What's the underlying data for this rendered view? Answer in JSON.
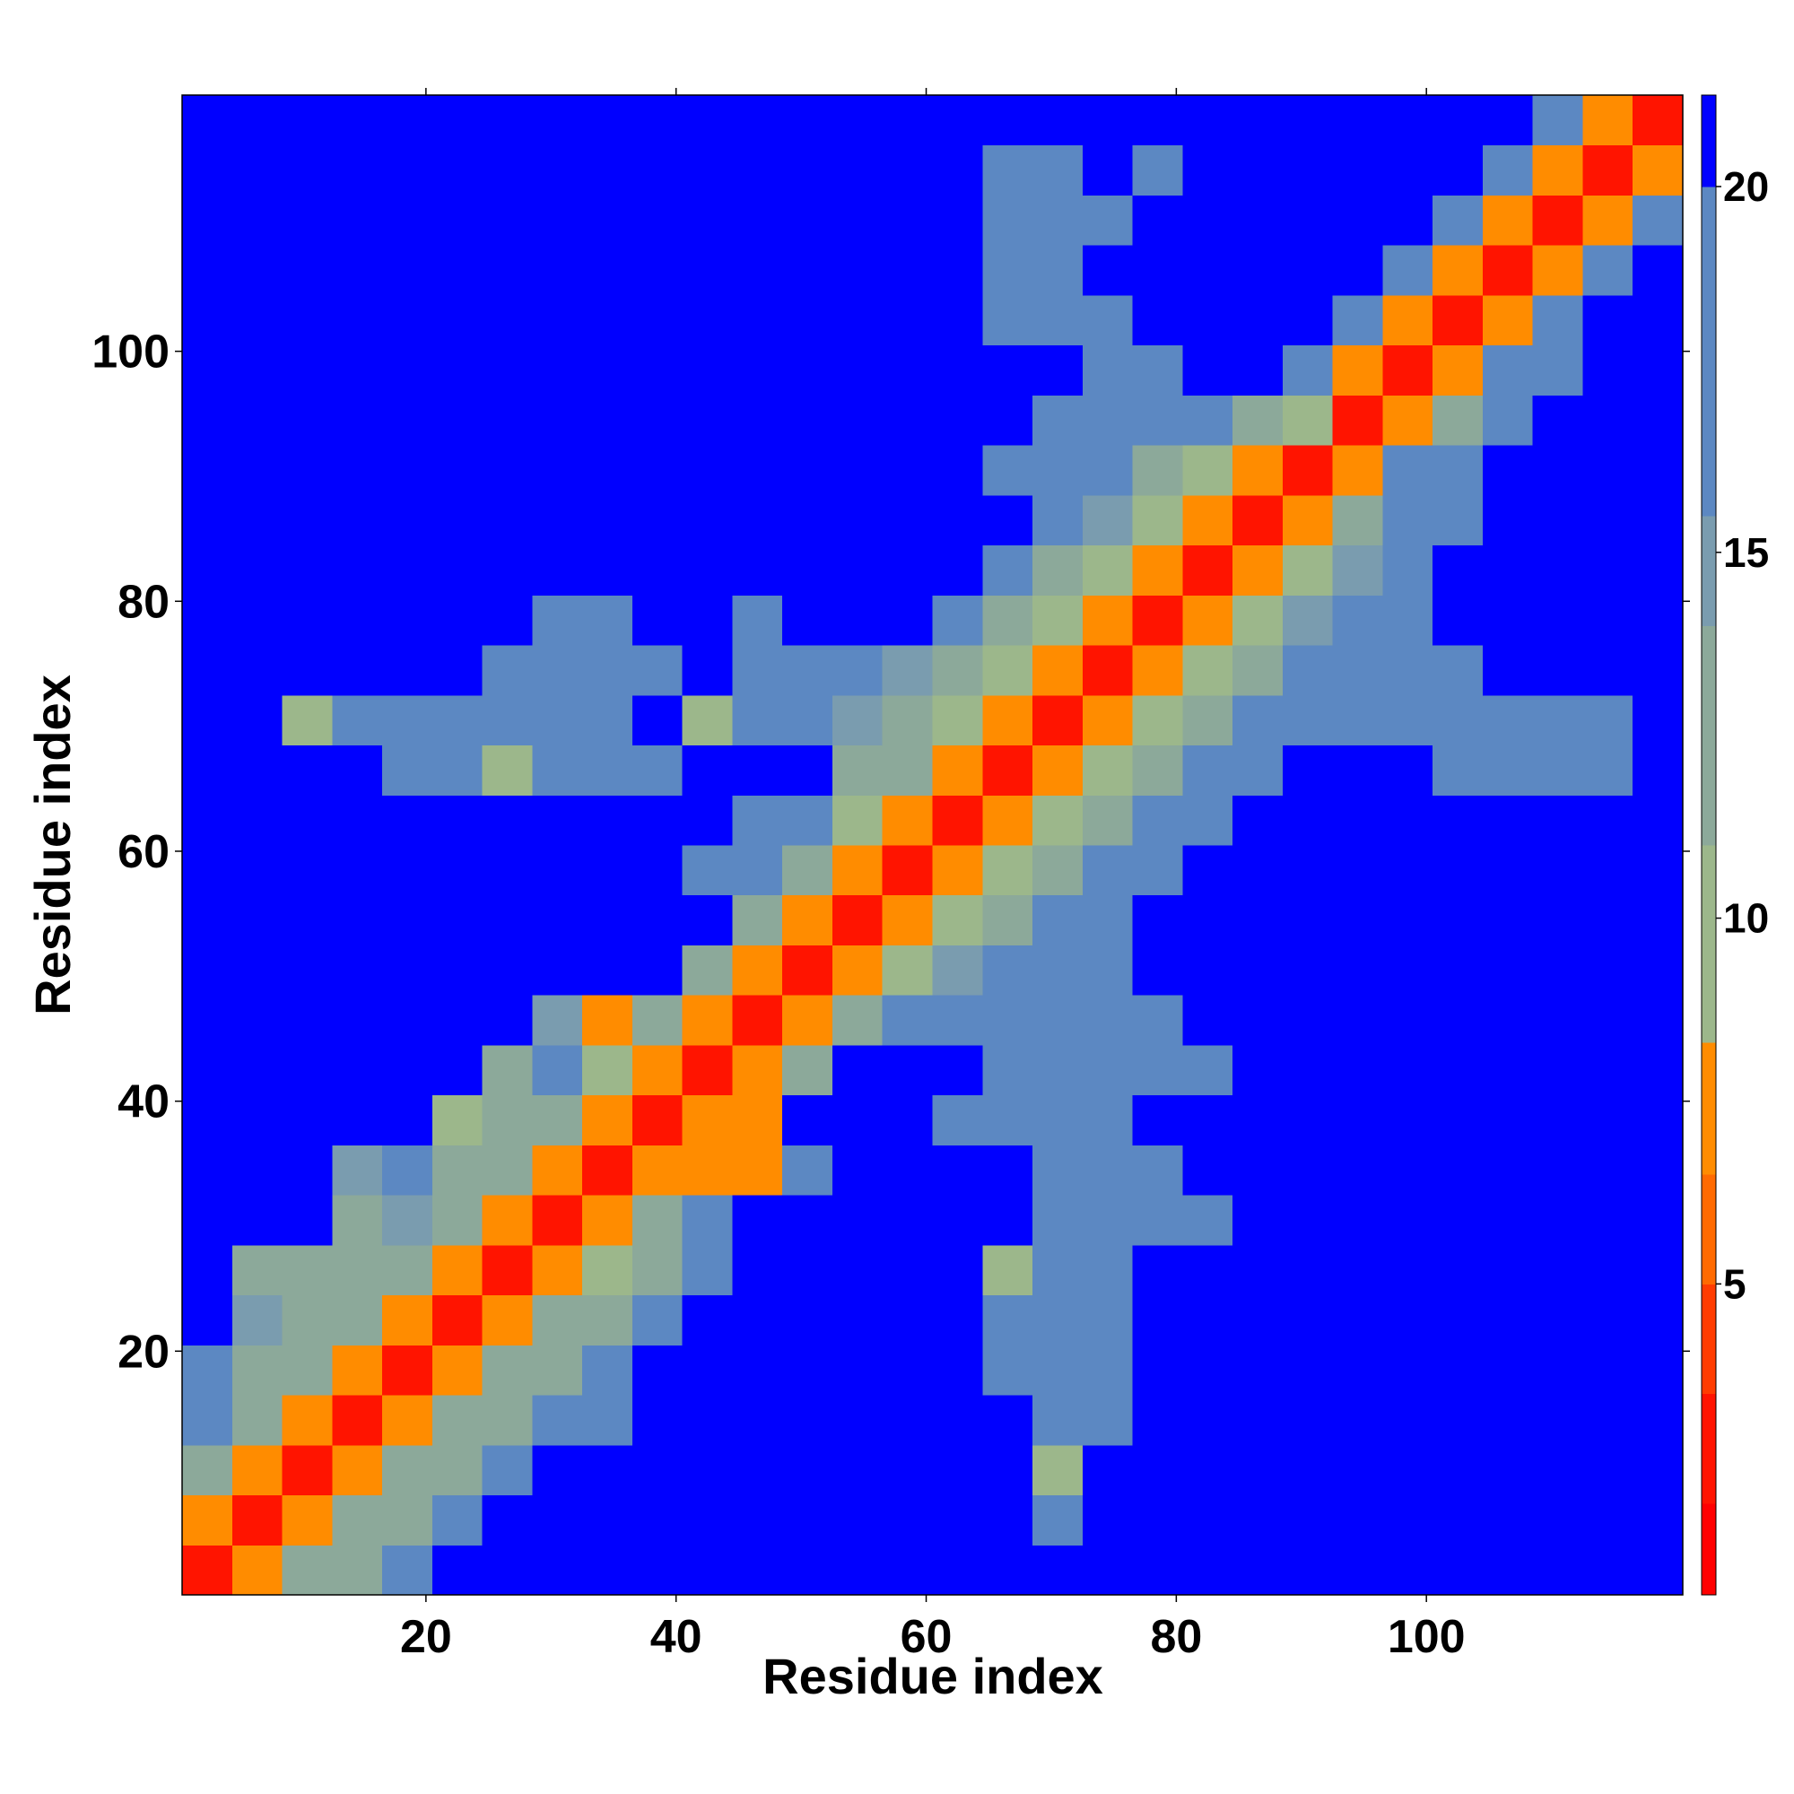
{
  "chart_data": {
    "type": "heatmap",
    "xlabel": "Residue index",
    "ylabel": "Residue index",
    "xlim": [
      0.5,
      120.5
    ],
    "ylim": [
      0.5,
      120.5
    ],
    "xticks": [
      20,
      40,
      60,
      80,
      100
    ],
    "yticks": [
      20,
      40,
      60,
      80,
      100
    ],
    "xbins": [
      0.5,
      4.5,
      8.5,
      12.5,
      16.5,
      20.5,
      24.5,
      28.5,
      32.5,
      36.5,
      40.5,
      44.5,
      48.5,
      52.5,
      56.5,
      60.5,
      64.5,
      68.5,
      72.5,
      76.5,
      80.5,
      84.5,
      88.5,
      92.5,
      96.5,
      100.5,
      104.5,
      108.5,
      112.5,
      116.5,
      120.5
    ],
    "ybins": [
      0.5,
      4.5,
      8.5,
      12.5,
      16.5,
      20.5,
      24.5,
      28.5,
      32.5,
      36.5,
      40.5,
      44.5,
      48.5,
      52.5,
      56.5,
      60.5,
      64.5,
      68.5,
      72.5,
      76.5,
      80.5,
      84.5,
      88.5,
      92.5,
      96.5,
      100.5,
      104.5,
      108.5,
      112.5,
      116.5,
      120.5
    ],
    "clim": [
      0.75,
      21.25
    ],
    "cticks": [
      5,
      10,
      15,
      20
    ],
    "levels": [
      0.75,
      2,
      3.5,
      5,
      6.5,
      8.3,
      11,
      14,
      15.5,
      20,
      21.25
    ],
    "level_colors": [
      "#ff0000",
      "#ff1400",
      "#ff3c00",
      "#ff6a00",
      "#ff8c00",
      "#9cb78b",
      "#8ca99a",
      "#7a9caf",
      "#5c88c2",
      "#0000ff"
    ],
    "z": [
      [
        3,
        8,
        12,
        14,
        17,
        21,
        21,
        21,
        21,
        21,
        21,
        21,
        21,
        21,
        21,
        21,
        21,
        21,
        21,
        21,
        21,
        21,
        21,
        21,
        21,
        21,
        21,
        21,
        21,
        21
      ],
      [
        8,
        3,
        8,
        12,
        13,
        16,
        21,
        21,
        21,
        21,
        21,
        21,
        21,
        21,
        21,
        21,
        21,
        20,
        21,
        21,
        21,
        21,
        21,
        21,
        21,
        21,
        21,
        21,
        21,
        21
      ],
      [
        12,
        8,
        3,
        8,
        12,
        13,
        17,
        21,
        21,
        21,
        21,
        21,
        21,
        21,
        21,
        21,
        21,
        9,
        21,
        21,
        21,
        21,
        21,
        21,
        21,
        21,
        21,
        21,
        21,
        21
      ],
      [
        17,
        12,
        8,
        3,
        8,
        12,
        13,
        16,
        17,
        21,
        21,
        21,
        21,
        21,
        21,
        21,
        21,
        18,
        20,
        21,
        21,
        21,
        21,
        21,
        21,
        21,
        21,
        21,
        21,
        21
      ],
      [
        16,
        12,
        12,
        8,
        3,
        8,
        12,
        14,
        17,
        21,
        21,
        21,
        21,
        21,
        21,
        21,
        18,
        18,
        20,
        21,
        21,
        21,
        21,
        21,
        21,
        21,
        21,
        21,
        21,
        21
      ],
      [
        21,
        15,
        12,
        13,
        8,
        3,
        8,
        12,
        13,
        18,
        21,
        21,
        21,
        21,
        21,
        21,
        18,
        18,
        19,
        21,
        21,
        21,
        21,
        21,
        21,
        21,
        21,
        21,
        21,
        21
      ],
      [
        21,
        14,
        13,
        13,
        12,
        8,
        3,
        8,
        10,
        14,
        20,
        21,
        21,
        21,
        21,
        21,
        9,
        18,
        19,
        21,
        21,
        21,
        21,
        21,
        21,
        21,
        21,
        21,
        21,
        21
      ],
      [
        21,
        21,
        21,
        14,
        15,
        13,
        8,
        3,
        8,
        12,
        18,
        21,
        21,
        21,
        21,
        21,
        21,
        18,
        18,
        18,
        20,
        21,
        21,
        21,
        21,
        21,
        21,
        21,
        21,
        21
      ],
      [
        21,
        21,
        21,
        15,
        16,
        14,
        12,
        8,
        3,
        8,
        8,
        8,
        20,
        21,
        21,
        21,
        21,
        18,
        18,
        19,
        21,
        21,
        21,
        21,
        21,
        21,
        21,
        21,
        21,
        21
      ],
      [
        21,
        21,
        21,
        21,
        21,
        10,
        13,
        13,
        8,
        3,
        8,
        8,
        21,
        21,
        21,
        20,
        19,
        18,
        19,
        21,
        21,
        21,
        21,
        21,
        21,
        21,
        21,
        21,
        21,
        21
      ],
      [
        21,
        21,
        21,
        21,
        21,
        21,
        14,
        17,
        9,
        8,
        3,
        8,
        14,
        21,
        21,
        21,
        19,
        18,
        19,
        19,
        20,
        21,
        21,
        21,
        21,
        21,
        21,
        21,
        21,
        21
      ],
      [
        21,
        21,
        21,
        21,
        21,
        21,
        21,
        15,
        8,
        13,
        8,
        3,
        8,
        13,
        16,
        20,
        18,
        18,
        18,
        18,
        21,
        21,
        21,
        21,
        21,
        21,
        21,
        21,
        21,
        21
      ],
      [
        21,
        21,
        21,
        21,
        21,
        21,
        21,
        21,
        21,
        21,
        14,
        8,
        3,
        7,
        10,
        15,
        16,
        18,
        19,
        21,
        21,
        21,
        21,
        21,
        21,
        21,
        21,
        21,
        21,
        21
      ],
      [
        21,
        21,
        21,
        21,
        21,
        21,
        21,
        21,
        21,
        21,
        21,
        13,
        8,
        3,
        7,
        10,
        12,
        17,
        20,
        21,
        21,
        21,
        21,
        21,
        21,
        21,
        21,
        21,
        21,
        21
      ],
      [
        21,
        21,
        21,
        21,
        21,
        21,
        21,
        21,
        21,
        21,
        19,
        17,
        12,
        7,
        3,
        7,
        10,
        13,
        17,
        20,
        21,
        21,
        21,
        21,
        21,
        21,
        21,
        21,
        21,
        21
      ],
      [
        21,
        21,
        21,
        21,
        21,
        21,
        21,
        21,
        21,
        21,
        21,
        20,
        16,
        11,
        7,
        3,
        7,
        10,
        12,
        16,
        20,
        21,
        21,
        21,
        21,
        21,
        21,
        21,
        21,
        21
      ],
      [
        21,
        21,
        21,
        21,
        19,
        18,
        10,
        18,
        20,
        20,
        21,
        21,
        21,
        14,
        12,
        8,
        3,
        7,
        10,
        13,
        17,
        20,
        21,
        21,
        21,
        18,
        18,
        18,
        18,
        21
      ],
      [
        21,
        21,
        9,
        19,
        18,
        18,
        19,
        19,
        20,
        21,
        10,
        19,
        17,
        15,
        13,
        10,
        7,
        3,
        7,
        10,
        14,
        18,
        18,
        18,
        19,
        18,
        18,
        18,
        18,
        21
      ],
      [
        21,
        21,
        21,
        21,
        21,
        21,
        20,
        19,
        19,
        20,
        21,
        17,
        16,
        17,
        15,
        13,
        10,
        7,
        3,
        7,
        10,
        14,
        17,
        19,
        19,
        20,
        21,
        21,
        21,
        21
      ],
      [
        21,
        21,
        21,
        21,
        21,
        21,
        21,
        17,
        18,
        21,
        21,
        19,
        21,
        21,
        21,
        17,
        13,
        10,
        7,
        3,
        7,
        10,
        15,
        18,
        20,
        21,
        21,
        21,
        21,
        21
      ],
      [
        21,
        21,
        21,
        21,
        21,
        21,
        21,
        21,
        21,
        21,
        21,
        21,
        21,
        21,
        21,
        21,
        18,
        14,
        11,
        7,
        3,
        7,
        10,
        15,
        20,
        21,
        21,
        21,
        21,
        21
      ],
      [
        21,
        21,
        21,
        21,
        21,
        21,
        21,
        21,
        21,
        21,
        21,
        21,
        21,
        21,
        21,
        21,
        21,
        18,
        15,
        11,
        8,
        3,
        7,
        12,
        17,
        20,
        21,
        21,
        21,
        21
      ],
      [
        21,
        21,
        21,
        21,
        21,
        21,
        21,
        21,
        21,
        21,
        21,
        21,
        21,
        21,
        21,
        21,
        20,
        19,
        17,
        14,
        11,
        7,
        3,
        7,
        16,
        19,
        21,
        21,
        21,
        21
      ],
      [
        21,
        21,
        21,
        21,
        21,
        21,
        21,
        21,
        21,
        21,
        21,
        21,
        21,
        21,
        21,
        21,
        21,
        19,
        18,
        18,
        19,
        14,
        9,
        3,
        7,
        14,
        19,
        21,
        21,
        21
      ],
      [
        21,
        21,
        21,
        21,
        21,
        21,
        21,
        21,
        21,
        21,
        21,
        21,
        21,
        21,
        21,
        21,
        21,
        21,
        19,
        20,
        21,
        21,
        16,
        8,
        3,
        7,
        17,
        20,
        21,
        21
      ],
      [
        21,
        21,
        21,
        21,
        21,
        21,
        21,
        21,
        21,
        21,
        21,
        21,
        21,
        21,
        21,
        21,
        20,
        19,
        20,
        21,
        21,
        21,
        21,
        18,
        7,
        3,
        8,
        17,
        21,
        21
      ],
      [
        21,
        21,
        21,
        21,
        21,
        21,
        21,
        21,
        21,
        21,
        21,
        21,
        21,
        21,
        21,
        21,
        19,
        18,
        21,
        21,
        21,
        21,
        21,
        21,
        17,
        8,
        3,
        8,
        17,
        21
      ],
      [
        21,
        21,
        21,
        21,
        21,
        21,
        21,
        21,
        21,
        21,
        21,
        21,
        21,
        21,
        21,
        21,
        19,
        18,
        20,
        21,
        21,
        21,
        21,
        21,
        21,
        18,
        8,
        3,
        8,
        17
      ],
      [
        21,
        21,
        21,
        21,
        21,
        21,
        21,
        21,
        21,
        21,
        21,
        21,
        21,
        21,
        21,
        21,
        19,
        20,
        21,
        20,
        21,
        21,
        21,
        21,
        21,
        21,
        19,
        8,
        3,
        8
      ],
      [
        21,
        21,
        21,
        21,
        21,
        21,
        21,
        21,
        21,
        21,
        21,
        21,
        21,
        21,
        21,
        21,
        21,
        21,
        21,
        21,
        21,
        21,
        21,
        21,
        21,
        21,
        21,
        18,
        8,
        3
      ]
    ]
  }
}
